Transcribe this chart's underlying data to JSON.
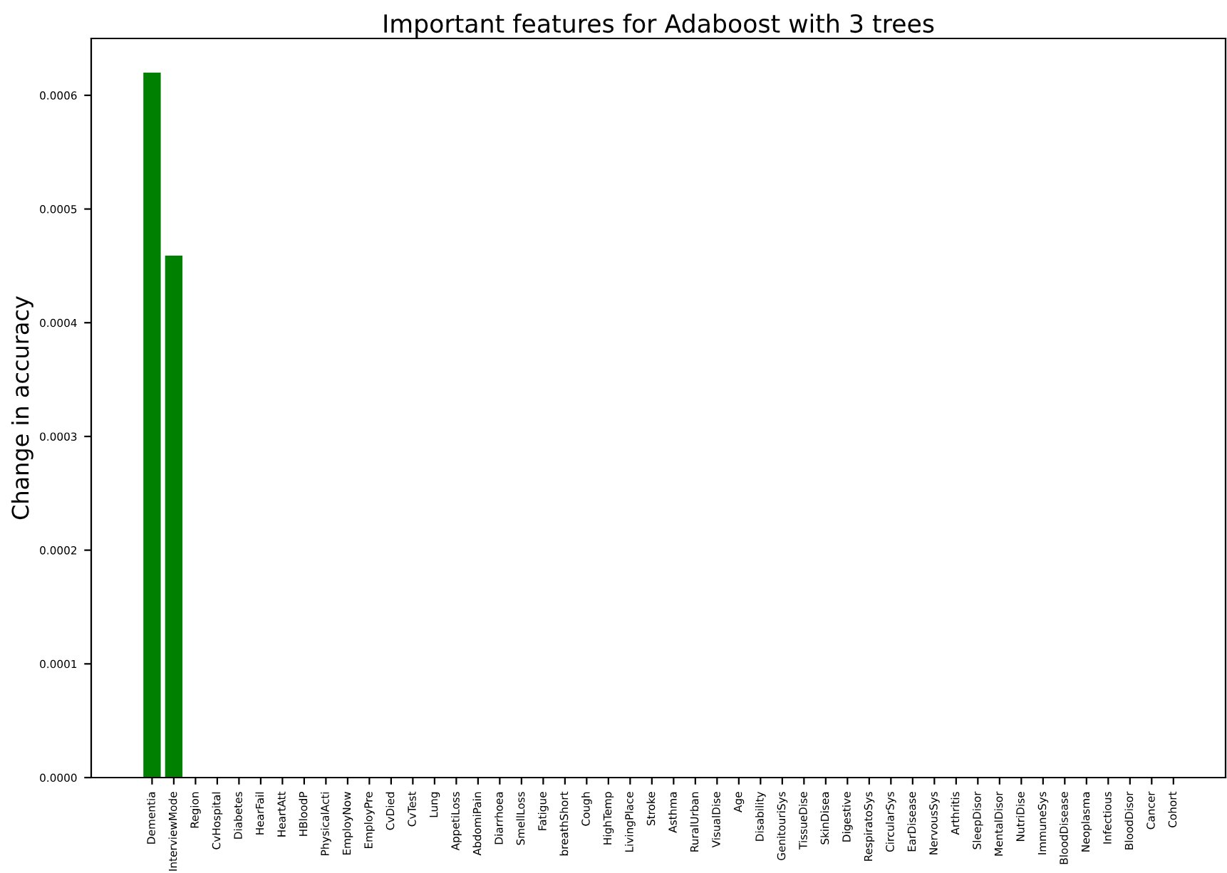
{
  "chart_data": {
    "type": "bar",
    "title": "Important features for Adaboost with 3 trees",
    "ylabel": "Change in accuracy",
    "categories": [
      "Dementia",
      "InterviewMode",
      "Region",
      "CvHospital",
      "Diabetes",
      "HearFail",
      "HeartAtt",
      "HBloodP",
      "PhysicalActi",
      "EmployNow",
      "EmployPre",
      "CvDied",
      "CvTest",
      "Lung",
      "AppetiLoss",
      "AbdomiPain",
      "Diarrhoea",
      "SmellLoss",
      "Fatigue",
      "breathShort",
      "Cough",
      "HighTemp",
      "LivingPlace",
      "Stroke",
      "Asthma",
      "RuralUrban",
      "VisualDise",
      "Age",
      "Disability",
      "GenitouriSys",
      "TissueDise",
      "SkinDisea",
      "Digestive",
      "RespiratoSys",
      "CircularSys",
      "EarDisease",
      "NervousSys",
      "Arthritis",
      "SleepDisor",
      "MentalDisor",
      "NutriDise",
      "ImmuneSys",
      "BloodDisease",
      "Neoplasma",
      "Infectious",
      "BloodDisor",
      "Cancer",
      "Cohort"
    ],
    "values": [
      0.00062,
      0.000459,
      0,
      0,
      0,
      0,
      0,
      0,
      0,
      0,
      0,
      0,
      0,
      0,
      0,
      0,
      0,
      0,
      0,
      0,
      0,
      0,
      0,
      0,
      0,
      0,
      0,
      0,
      0,
      0,
      0,
      0,
      0,
      0,
      0,
      0,
      0,
      0,
      0,
      0,
      0,
      0,
      0,
      0,
      0,
      0,
      0,
      0
    ],
    "color": "#008000",
    "ylim": [
      0,
      0.00065
    ],
    "yticks": [
      {
        "value": 0,
        "label": "0.0000"
      },
      {
        "value": 0.0001,
        "label": "0.0001"
      },
      {
        "value": 0.0002,
        "label": "0.0002"
      },
      {
        "value": 0.0003,
        "label": "0.0003"
      },
      {
        "value": 0.0004,
        "label": "0.0004"
      },
      {
        "value": 0.0005,
        "label": "0.0005"
      },
      {
        "value": 0.0006,
        "label": "0.0006"
      }
    ],
    "grid": false
  }
}
